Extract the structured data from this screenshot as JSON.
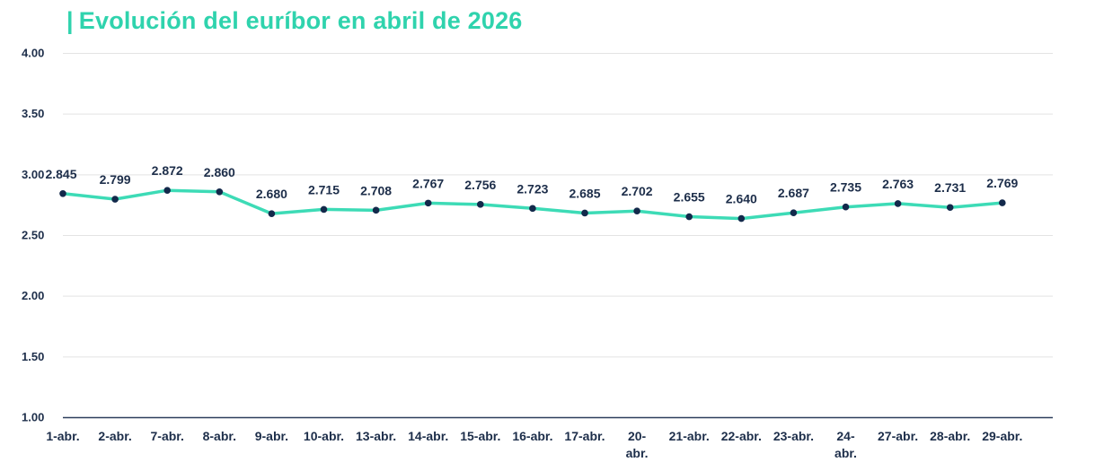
{
  "colors": {
    "title": "#2fd3ad",
    "line": "#3ddbb6",
    "marker": "#13294b",
    "text": "#1d2e4a",
    "grid": "#e3e3e3",
    "axis": "#2e3f5c"
  },
  "chart_data": {
    "type": "line",
    "title": "Evolución del euríbor en abril de 2026",
    "xlabel": "",
    "ylabel": "",
    "ylim": [
      1.0,
      4.0
    ],
    "yticks": [
      "1.00",
      "1.50",
      "2.00",
      "2.50",
      "3.00",
      "3.50",
      "4.00"
    ],
    "grid": true,
    "legend": "none",
    "categories": [
      "1-abr.",
      "2-abr.",
      "7-abr.",
      "8-abr.",
      "9-abr.",
      "10-abr.",
      "13-abr.",
      "14-abr.",
      "15-abr.",
      "16-abr.",
      "17-abr.",
      "20-abr.",
      "21-abr.",
      "22-abr.",
      "23-abr.",
      "24-abr.",
      "27-abr.",
      "28-abr.",
      "29-abr."
    ],
    "series": [
      {
        "values": [
          2.845,
          2.799,
          2.872,
          2.86,
          2.68,
          2.715,
          2.708,
          2.767,
          2.756,
          2.723,
          2.685,
          2.702,
          2.655,
          2.64,
          2.687,
          2.735,
          2.763,
          2.731,
          2.769
        ],
        "labels": [
          "2.845",
          "2.799",
          "2.872",
          "2.860",
          "2.680",
          "2.715",
          "2.708",
          "2.767",
          "2.756",
          "2.723",
          "2.685",
          "2.702",
          "2.655",
          "2.640",
          "2.687",
          "2.735",
          "2.763",
          "2.731",
          "2.769"
        ]
      }
    ]
  }
}
